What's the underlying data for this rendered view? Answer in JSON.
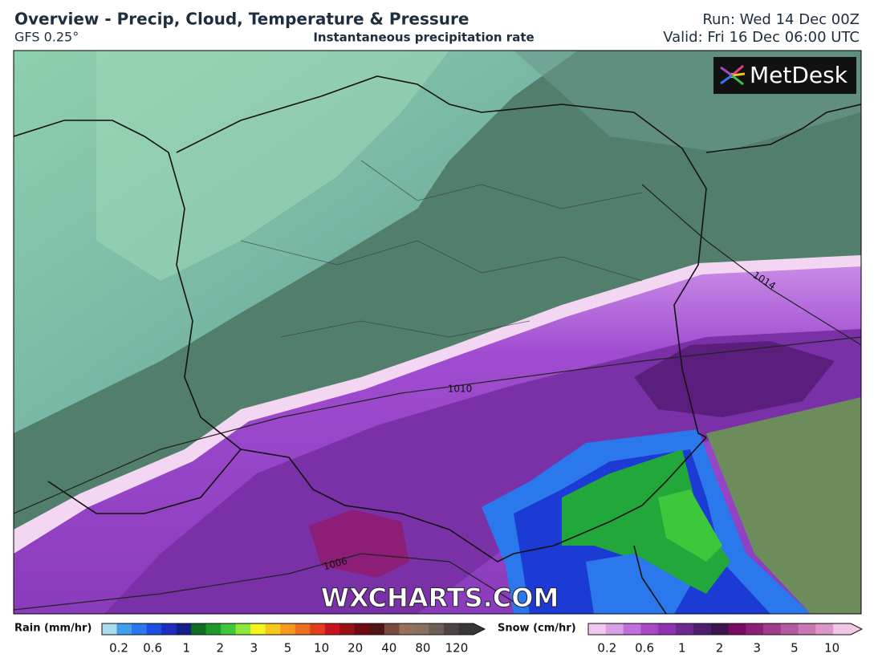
{
  "header": {
    "title": "Overview - Precip, Cloud, Temperature & Pressure",
    "model": "GFS 0.25°",
    "subtitle": "Instantaneous precipitation rate",
    "run": "Run: Wed 14 Dec 00Z",
    "valid": "Valid: Fri 16 Dec 06:00 UTC"
  },
  "logo": "MetDesk",
  "watermark": "WXCHARTS.COM",
  "isobars": [
    1014,
    1010,
    1006
  ],
  "legend": {
    "rain": {
      "title": "Rain (mm/hr)",
      "ticks": [
        0.2,
        0.6,
        1,
        2,
        3,
        5,
        10,
        20,
        40,
        80,
        120
      ],
      "colors": [
        "#a6dcec",
        "#3fa0f0",
        "#2a78ec",
        "#1c4ee0",
        "#1c2ec0",
        "#12208a",
        "#0f6e1e",
        "#1e9a2a",
        "#3cc83a",
        "#8ee83a",
        "#f5f51e",
        "#f5c81e",
        "#f59a1e",
        "#f06e20",
        "#e63c1e",
        "#c8141e",
        "#961014",
        "#6e0a10",
        "#501414",
        "#7a4a3c",
        "#96705a",
        "#8a7064",
        "#6e5e5a",
        "#4e4444",
        "#3a3636"
      ]
    },
    "snow": {
      "title": "Snow (cm/hr)",
      "ticks": [
        0.2,
        0.6,
        1,
        2,
        3,
        5,
        10
      ],
      "colors": [
        "#f0c8f0",
        "#d9a0e6",
        "#c070dc",
        "#a848c8",
        "#8c34b0",
        "#6e2890",
        "#501e6e",
        "#3c1450",
        "#780a64",
        "#8c1e78",
        "#a03c8c",
        "#b45aa0",
        "#c878b4",
        "#dc96c8",
        "#f0c8e6"
      ]
    }
  }
}
